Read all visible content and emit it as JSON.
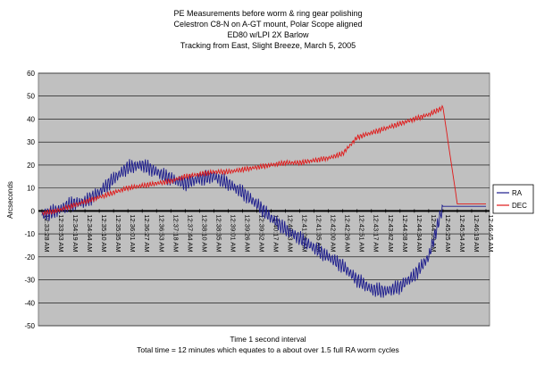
{
  "chart_data": {
    "type": "line",
    "title": [
      "PE Measurements before worm & ring gear polishing",
      "Celestron C8-N on A-GT mount, Polar Scope aligned",
      "ED80 w/LPI 2X Barlow",
      "Tracking from East, Slight Breeze, March 5, 2005"
    ],
    "xlabel": [
      "Time 1 second interval",
      "Total time = 12 minutes which equates to a about over 1.5 full RA worm cycles"
    ],
    "ylabel": "Arcseconds",
    "ylim": [
      -50,
      60
    ],
    "yticks": [
      60,
      50,
      40,
      30,
      20,
      10,
      0,
      -10,
      -20,
      -30,
      -40,
      -50
    ],
    "grid": true,
    "legend_position": "right",
    "x": [
      "12:33:28 AM",
      "12:33:53 AM",
      "12:34:19 AM",
      "12:34:44 AM",
      "12:35:10 AM",
      "12:35:35 AM",
      "12:36:01 AM",
      "12:36:27 AM",
      "12:36:53 AM",
      "12:37:18 AM",
      "12:37:44 AM",
      "12:38:10 AM",
      "12:38:35 AM",
      "12:39:01 AM",
      "12:39:26 AM",
      "12:39:52 AM",
      "12:40:17 AM",
      "12:40:43 AM",
      "12:41:09 AM",
      "12:41:35 AM",
      "12:42:00 AM",
      "12:42:26 AM",
      "12:42:51 AM",
      "12:43:17 AM",
      "12:43:42 AM",
      "12:44:08 AM",
      "12:44:34 AM",
      "12:44:59 AM",
      "12:45:25 AM",
      "12:45:54 AM",
      "12:46:19 AM",
      "12:46:45 AM"
    ],
    "series": [
      {
        "name": "RA",
        "color": "#1a1a8c",
        "values": [
          -2,
          0,
          3,
          4,
          8,
          14,
          19,
          20,
          17,
          14,
          12,
          14,
          15,
          12,
          8,
          3,
          -3,
          -8,
          -12,
          -16,
          -20,
          -24,
          -30,
          -34,
          -35,
          -33,
          -28,
          -20,
          2,
          2,
          2,
          2
        ],
        "noise": 3.5
      },
      {
        "name": "DEC",
        "color": "#e01818",
        "values": [
          -1,
          0,
          2,
          4,
          6,
          8,
          10,
          11,
          12,
          13,
          15,
          16,
          17,
          17,
          18,
          19,
          20,
          21,
          21,
          22,
          23,
          25,
          32,
          34,
          36,
          38,
          40,
          42,
          45,
          3,
          3,
          3
        ],
        "noise": 1.2
      }
    ]
  }
}
